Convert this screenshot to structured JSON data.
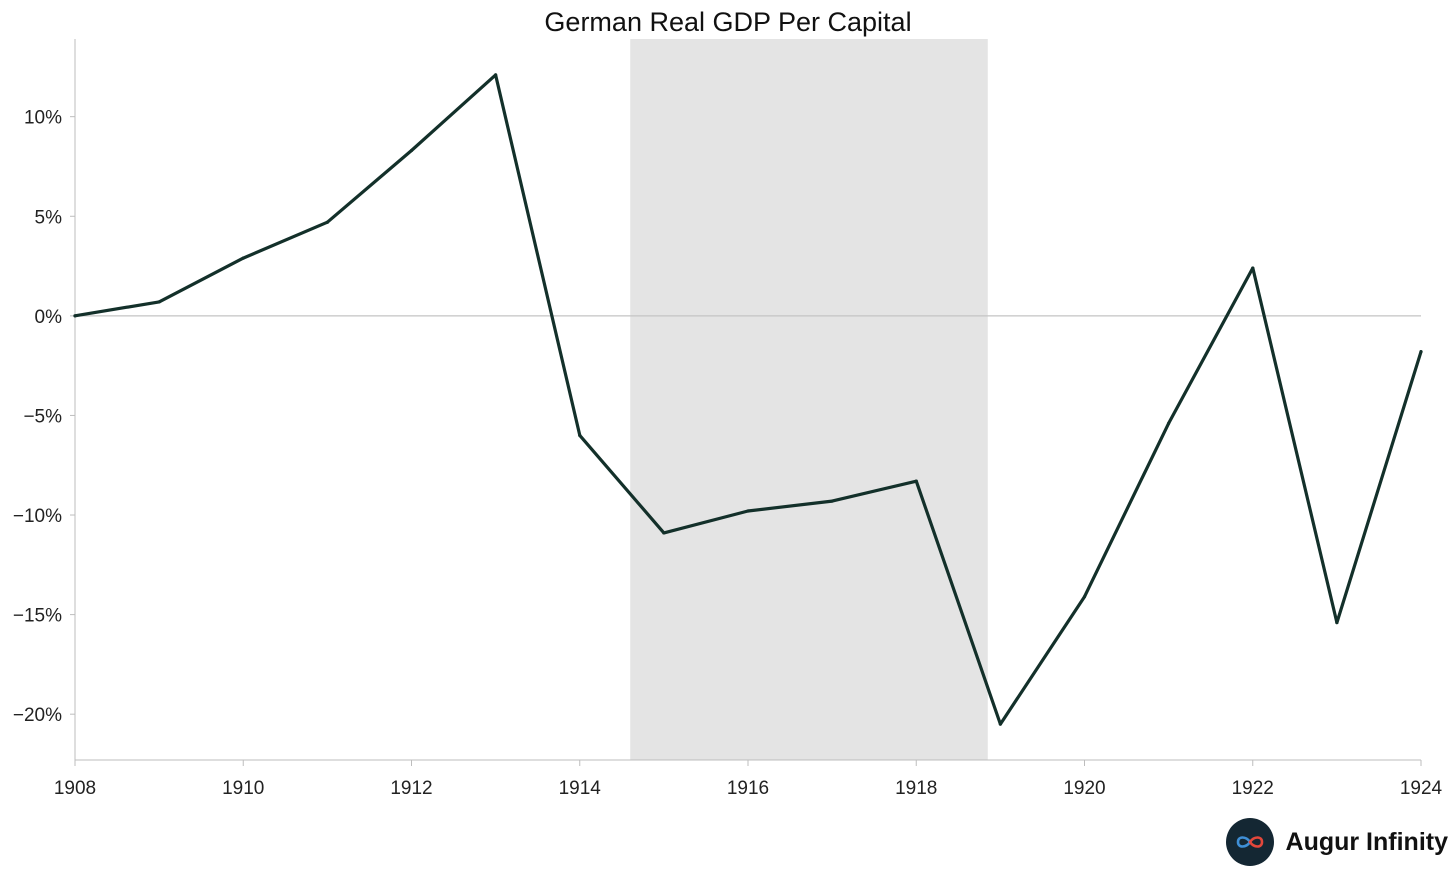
{
  "chart_data": {
    "type": "line",
    "title": "German Real GDP Per Capital",
    "xlabel": "",
    "ylabel": "",
    "xlim": [
      1908,
      1924
    ],
    "ylim": [
      -22.3,
      13.9
    ],
    "x_ticks": [
      1908,
      1910,
      1912,
      1914,
      1916,
      1918,
      1920,
      1922,
      1924
    ],
    "y_ticks": [
      10,
      5,
      0,
      -5,
      -10,
      -15,
      -20
    ],
    "y_tick_labels": [
      "10%",
      "5%",
      "0%",
      "−5%",
      "−10%",
      "−15%",
      "−20%"
    ],
    "shaded_region": {
      "x_start": 1914.6,
      "x_end": 1918.85
    },
    "zero_line": true,
    "grid": false,
    "series": [
      {
        "color": "#13302a",
        "x": [
          1908,
          1909,
          1910,
          1911,
          1912,
          1913,
          1914,
          1915,
          1916,
          1917,
          1918,
          1919,
          1920,
          1921,
          1922,
          1923,
          1924
        ],
        "values": [
          0.0,
          0.7,
          2.9,
          4.7,
          8.3,
          12.1,
          -6.0,
          -10.9,
          -9.8,
          -9.3,
          -8.3,
          -20.5,
          -14.1,
          -5.4,
          2.4,
          -15.4,
          -1.8
        ]
      }
    ]
  },
  "brand": {
    "name": "Augur Infinity",
    "logo_icon": "infinity-icon"
  }
}
